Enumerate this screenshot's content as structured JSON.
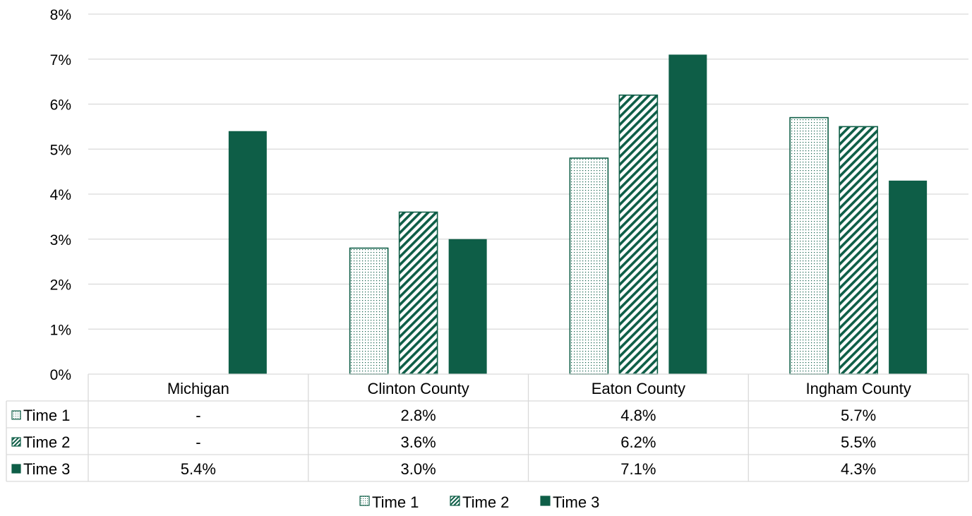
{
  "colors": {
    "accent": "#0e5e47",
    "grid": "#d9d9d9",
    "table_border": "#d9d9d9"
  },
  "chart_data": {
    "type": "bar",
    "categories": [
      "Michigan",
      "Clinton County",
      "Eaton County",
      "Ingham County"
    ],
    "series": [
      {
        "name": "Time 1",
        "pattern": "dots",
        "values": [
          null,
          2.8,
          4.8,
          5.7
        ],
        "table_labels": [
          "-",
          "2.8%",
          "4.8%",
          "5.7%"
        ]
      },
      {
        "name": "Time 2",
        "pattern": "diagonal-stripes",
        "values": [
          null,
          3.6,
          6.2,
          5.5
        ],
        "table_labels": [
          "-",
          "3.6%",
          "6.2%",
          "5.5%"
        ]
      },
      {
        "name": "Time 3",
        "pattern": "solid",
        "values": [
          5.4,
          3.0,
          7.1,
          4.3
        ],
        "table_labels": [
          "5.4%",
          "3.0%",
          "7.1%",
          "4.3%"
        ]
      }
    ],
    "y_ticks": [
      "0%",
      "1%",
      "2%",
      "3%",
      "4%",
      "5%",
      "6%",
      "7%",
      "8%"
    ],
    "ylim": [
      0,
      8
    ],
    "grid": true,
    "legend_position": "bottom",
    "data_table": true
  }
}
